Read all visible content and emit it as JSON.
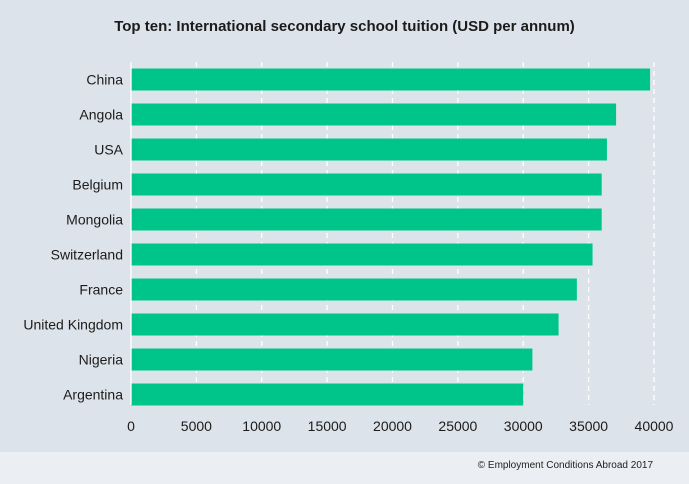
{
  "chart_data": {
    "type": "bar",
    "orientation": "horizontal",
    "title": "Top ten: International secondary school tuition (USD per annum)",
    "categories": [
      "China",
      "Angola",
      "USA",
      "Belgium",
      "Mongolia",
      "Switzerland",
      "France",
      "United Kingdom",
      "Nigeria",
      "Argentina"
    ],
    "values": [
      39700,
      37100,
      36400,
      36000,
      36000,
      35300,
      34100,
      32700,
      30700,
      30000
    ],
    "xlim": [
      0,
      40000
    ],
    "xticks": [
      "0",
      "5000",
      "10000",
      "15000",
      "20000",
      "25000",
      "30000",
      "35000",
      "40000"
    ],
    "xlabel": "",
    "ylabel": "",
    "grid": "vertical dashed",
    "bar_color": "#00c58a"
  },
  "footer": {
    "credit": "© Employment Conditions Abroad 2017"
  }
}
